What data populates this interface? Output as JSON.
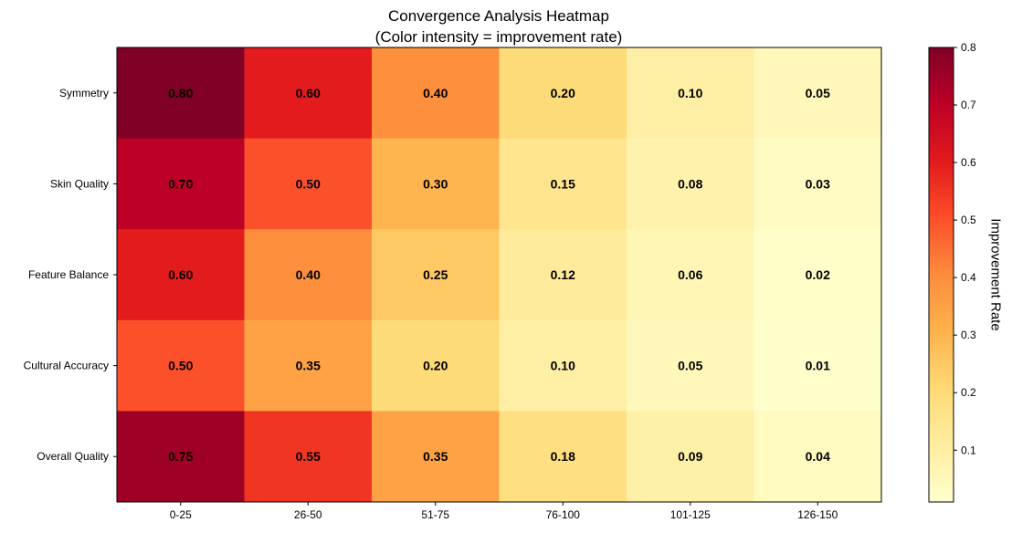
{
  "chart_data": {
    "type": "heatmap",
    "title": "Convergence Analysis Heatmap",
    "subtitle": "(Color intensity = improvement rate)",
    "rows": [
      "Symmetry",
      "Skin Quality",
      "Feature Balance",
      "Cultural Accuracy",
      "Overall Quality"
    ],
    "columns": [
      "0-25",
      "26-50",
      "51-75",
      "76-100",
      "101-125",
      "126-150"
    ],
    "values": [
      [
        0.8,
        0.6,
        0.4,
        0.2,
        0.1,
        0.05
      ],
      [
        0.7,
        0.5,
        0.3,
        0.15,
        0.08,
        0.03
      ],
      [
        0.6,
        0.4,
        0.25,
        0.12,
        0.06,
        0.02
      ],
      [
        0.5,
        0.35,
        0.2,
        0.1,
        0.05,
        0.01
      ],
      [
        0.75,
        0.55,
        0.35,
        0.18,
        0.09,
        0.04
      ]
    ],
    "labels": [
      [
        "0.80",
        "0.60",
        "0.40",
        "0.20",
        "0.10",
        "0.05"
      ],
      [
        "0.70",
        "0.50",
        "0.30",
        "0.15",
        "0.08",
        "0.03"
      ],
      [
        "0.60",
        "0.40",
        "0.25",
        "0.12",
        "0.06",
        "0.02"
      ],
      [
        "0.50",
        "0.35",
        "0.20",
        "0.10",
        "0.05",
        "0.01"
      ],
      [
        "0.75",
        "0.55",
        "0.35",
        "0.18",
        "0.09",
        "0.04"
      ]
    ],
    "colormap": "YlOrRd",
    "vmin": 0.01,
    "vmax": 0.8,
    "colorbar": {
      "label": "Improvement Rate",
      "ticks": [
        0.1,
        0.2,
        0.3,
        0.4,
        0.5,
        0.6,
        0.7,
        0.8
      ],
      "tick_labels": [
        "0.1",
        "0.2",
        "0.3",
        "0.4",
        "0.5",
        "0.6",
        "0.7",
        "0.8"
      ]
    },
    "grid": false
  }
}
